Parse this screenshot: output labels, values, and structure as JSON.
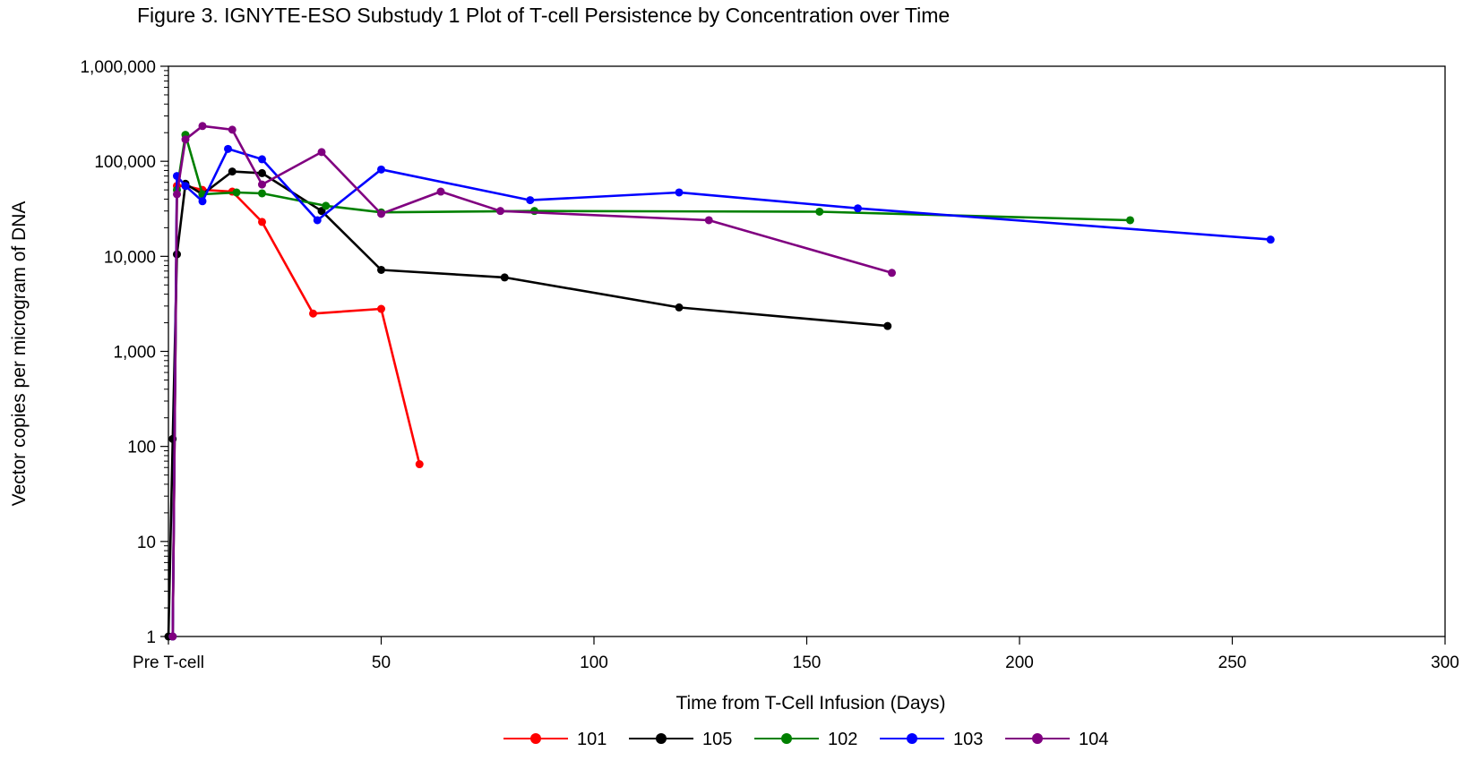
{
  "chart_data": {
    "type": "line",
    "title": "Figure 3. IGNYTE-ESO Substudy 1 Plot of T-cell Persistence by Concentration over Time",
    "xlabel": "Time from T-Cell Infusion (Days)",
    "ylabel": "Vector copies per microgram of DNA",
    "xlim": [
      0,
      300
    ],
    "ylim": [
      1,
      1000000
    ],
    "yscale": "log",
    "xticks": [
      {
        "value": 0,
        "label": "Pre T-cell"
      },
      {
        "value": 50,
        "label": "50"
      },
      {
        "value": 100,
        "label": "100"
      },
      {
        "value": 150,
        "label": "150"
      },
      {
        "value": 200,
        "label": "200"
      },
      {
        "value": 250,
        "label": "250"
      },
      {
        "value": 300,
        "label": "300"
      }
    ],
    "yticks": [
      {
        "value": 1,
        "label": "1"
      },
      {
        "value": 10,
        "label": "10"
      },
      {
        "value": 100,
        "label": "100"
      },
      {
        "value": 1000,
        "label": "1,000"
      },
      {
        "value": 10000,
        "label": "10,000"
      },
      {
        "value": 100000,
        "label": "100,000"
      },
      {
        "value": 1000000,
        "label": "1,000,000"
      }
    ],
    "grid": false,
    "legend_position": "bottom",
    "series": [
      {
        "name": "101",
        "color": "#ff0000",
        "x": [
          1,
          2,
          4,
          8,
          15,
          22,
          34,
          50,
          59
        ],
        "y": [
          1,
          55000,
          55000,
          50000,
          48000,
          23000,
          2500,
          2800,
          65
        ]
      },
      {
        "name": "105",
        "color": "#000000",
        "x": [
          0,
          1,
          2,
          4,
          8,
          15,
          22,
          36,
          50,
          79,
          120,
          169
        ],
        "y": [
          1,
          120,
          10500,
          58000,
          45000,
          78000,
          75000,
          30000,
          7200,
          6000,
          2900,
          1850
        ]
      },
      {
        "name": "102",
        "color": "#008000",
        "x": [
          1,
          2,
          4,
          8,
          16,
          22,
          37,
          50,
          86,
          153,
          226
        ],
        "y": [
          1,
          50000,
          190000,
          45000,
          47000,
          46000,
          34000,
          29000,
          30000,
          29500,
          24000
        ]
      },
      {
        "name": "103",
        "color": "#0000ff",
        "x": [
          1,
          2,
          4,
          8,
          14,
          22,
          35,
          50,
          85,
          120,
          162,
          259
        ],
        "y": [
          1,
          70000,
          55000,
          38000,
          135000,
          105000,
          24000,
          82000,
          39000,
          47000,
          32000,
          15000
        ]
      },
      {
        "name": "104",
        "color": "#800080",
        "x": [
          1,
          2,
          4,
          8,
          15,
          22,
          36,
          50,
          64,
          78,
          127,
          170
        ],
        "y": [
          1,
          45000,
          170000,
          235000,
          215000,
          57000,
          125000,
          28000,
          48000,
          30000,
          24000,
          6700
        ]
      }
    ]
  }
}
